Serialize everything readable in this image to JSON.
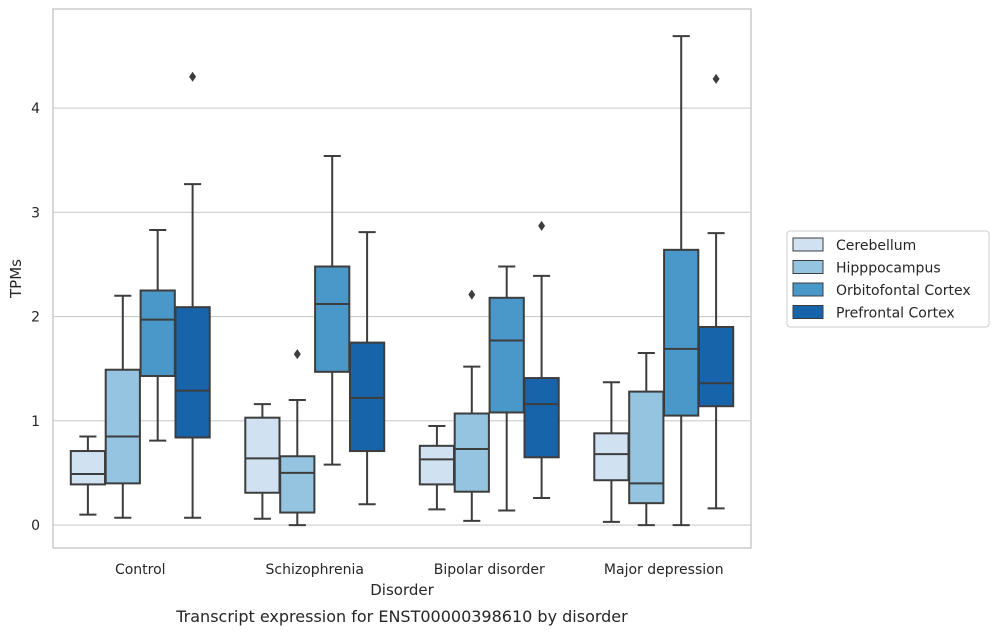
{
  "chart_data": {
    "type": "boxplot",
    "caption": "Transcript expression for ENST00000398610 by disorder",
    "xlabel": "Disorder",
    "ylabel": "TPMs",
    "ylim": [
      -0.22,
      4.95
    ],
    "yticks": [
      0,
      1,
      2,
      3,
      4
    ],
    "grid": "horizontal",
    "legend_position": "right",
    "categories": [
      "Control",
      "Schizophrenia",
      "Bipolar disorder",
      "Major depression"
    ],
    "series": [
      {
        "name": "Cerebellum",
        "color": "#d0e1f2",
        "boxes": [
          {
            "whislo": 0.1,
            "q1": 0.39,
            "med": 0.49,
            "q3": 0.71,
            "whishi": 0.85,
            "fliers": []
          },
          {
            "whislo": 0.06,
            "q1": 0.31,
            "med": 0.64,
            "q3": 1.03,
            "whishi": 1.16,
            "fliers": []
          },
          {
            "whislo": 0.15,
            "q1": 0.39,
            "med": 0.63,
            "q3": 0.76,
            "whishi": 0.95,
            "fliers": []
          },
          {
            "whislo": 0.03,
            "q1": 0.43,
            "med": 0.68,
            "q3": 0.88,
            "whishi": 1.37,
            "fliers": []
          }
        ]
      },
      {
        "name": "Hipppocampus",
        "color": "#94c4df",
        "boxes": [
          {
            "whislo": 0.07,
            "q1": 0.4,
            "med": 0.85,
            "q3": 1.49,
            "whishi": 2.2,
            "fliers": []
          },
          {
            "whislo": 0.0,
            "q1": 0.12,
            "med": 0.5,
            "q3": 0.66,
            "whishi": 1.2,
            "fliers": [
              1.64
            ]
          },
          {
            "whislo": 0.04,
            "q1": 0.32,
            "med": 0.73,
            "q3": 1.07,
            "whishi": 1.52,
            "fliers": [
              2.21
            ]
          },
          {
            "whislo": 0.0,
            "q1": 0.21,
            "med": 0.4,
            "q3": 1.28,
            "whishi": 1.65,
            "fliers": []
          }
        ]
      },
      {
        "name": "Orbitofontal Cortex",
        "color": "#4a98c9",
        "boxes": [
          {
            "whislo": 0.81,
            "q1": 1.43,
            "med": 1.97,
            "q3": 2.25,
            "whishi": 2.83,
            "fliers": []
          },
          {
            "whislo": 0.58,
            "q1": 1.47,
            "med": 2.12,
            "q3": 2.48,
            "whishi": 3.54,
            "fliers": []
          },
          {
            "whislo": 0.14,
            "q1": 1.08,
            "med": 1.77,
            "q3": 2.18,
            "whishi": 2.48,
            "fliers": []
          },
          {
            "whislo": 0.0,
            "q1": 1.05,
            "med": 1.69,
            "q3": 2.64,
            "whishi": 4.69,
            "fliers": []
          }
        ]
      },
      {
        "name": "Prefrontal Cortex",
        "color": "#1764ab",
        "boxes": [
          {
            "whislo": 0.07,
            "q1": 0.84,
            "med": 1.29,
            "q3": 2.09,
            "whishi": 3.27,
            "fliers": [
              4.3
            ]
          },
          {
            "whislo": 0.2,
            "q1": 0.71,
            "med": 1.22,
            "q3": 1.75,
            "whishi": 2.81,
            "fliers": []
          },
          {
            "whislo": 0.26,
            "q1": 0.65,
            "med": 1.16,
            "q3": 1.41,
            "whishi": 2.39,
            "fliers": [
              2.87
            ]
          },
          {
            "whislo": 0.16,
            "q1": 1.14,
            "med": 1.36,
            "q3": 1.9,
            "whishi": 2.8,
            "fliers": [
              4.28
            ]
          }
        ]
      }
    ]
  }
}
